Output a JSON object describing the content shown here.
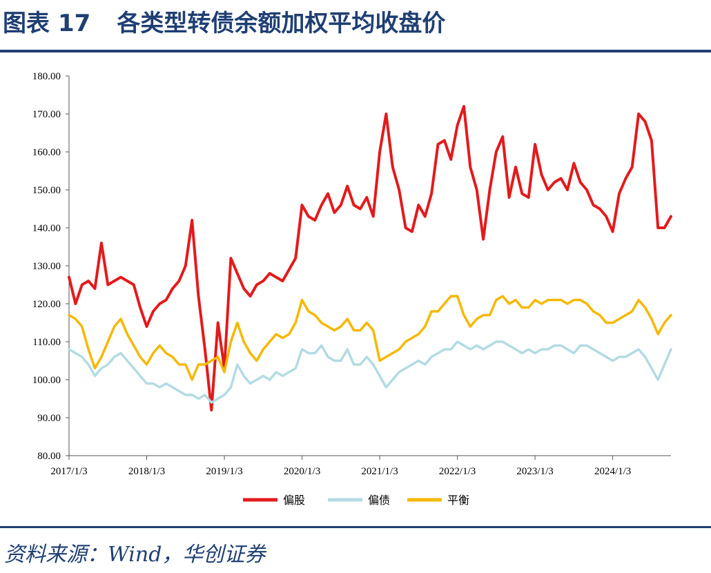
{
  "header": {
    "label": "图表",
    "number": "17",
    "title": "各类型转债余额加权平均收盘价"
  },
  "source": "资料来源：Wind，华创证券",
  "chart_data": {
    "type": "line",
    "title": "各类型转债余额加权平均收盘价",
    "xlabel": "",
    "ylabel": "",
    "ylim": [
      80,
      180
    ],
    "yticks": [
      "80.00",
      "90.00",
      "100.00",
      "110.00",
      "120.00",
      "130.00",
      "140.00",
      "150.00",
      "160.00",
      "170.00",
      "180.00"
    ],
    "xticks": [
      "2017/1/3",
      "2018/1/3",
      "2019/1/3",
      "2020/1/3",
      "2021/1/3",
      "2022/1/3",
      "2023/1/3",
      "2024/1/3"
    ],
    "x": [
      "2017-01",
      "2017-02",
      "2017-03",
      "2017-04",
      "2017-05",
      "2017-06",
      "2017-07",
      "2017-08",
      "2017-09",
      "2017-10",
      "2017-11",
      "2017-12",
      "2018-01",
      "2018-02",
      "2018-03",
      "2018-04",
      "2018-05",
      "2018-06",
      "2018-07",
      "2018-08",
      "2018-09",
      "2018-10",
      "2018-11",
      "2018-12",
      "2019-01",
      "2019-02",
      "2019-03",
      "2019-04",
      "2019-05",
      "2019-06",
      "2019-07",
      "2019-08",
      "2019-09",
      "2019-10",
      "2019-11",
      "2019-12",
      "2020-01",
      "2020-02",
      "2020-03",
      "2020-04",
      "2020-05",
      "2020-06",
      "2020-07",
      "2020-08",
      "2020-09",
      "2020-10",
      "2020-11",
      "2020-12",
      "2021-01",
      "2021-02",
      "2021-03",
      "2021-04",
      "2021-05",
      "2021-06",
      "2021-07",
      "2021-08",
      "2021-09",
      "2021-10",
      "2021-11",
      "2021-12",
      "2022-01",
      "2022-02",
      "2022-03",
      "2022-04",
      "2022-05",
      "2022-06",
      "2022-07",
      "2022-08",
      "2022-09",
      "2022-10",
      "2022-11",
      "2022-12",
      "2023-01",
      "2023-02",
      "2023-03",
      "2023-04",
      "2023-05",
      "2023-06",
      "2023-07",
      "2023-08",
      "2023-09",
      "2023-10",
      "2023-11",
      "2023-12",
      "2024-01",
      "2024-02",
      "2024-03",
      "2024-04",
      "2024-05",
      "2024-06",
      "2024-07",
      "2024-08",
      "2024-09",
      "2024-10"
    ],
    "series": [
      {
        "name": "偏股",
        "color": "#e31a1c",
        "values": [
          127,
          120,
          125,
          126,
          124,
          136,
          125,
          126,
          127,
          126,
          125,
          119,
          114,
          118,
          120,
          121,
          124,
          126,
          130,
          142,
          122,
          108,
          92,
          115,
          103,
          132,
          128,
          124,
          122,
          125,
          126,
          128,
          127,
          126,
          129,
          132,
          146,
          143,
          142,
          146,
          149,
          144,
          146,
          151,
          146,
          145,
          148,
          143,
          160,
          170,
          156,
          150,
          140,
          139,
          146,
          143,
          149,
          162,
          163,
          158,
          167,
          172,
          156,
          150,
          137,
          150,
          160,
          164,
          148,
          156,
          149,
          148,
          162,
          154,
          150,
          152,
          153,
          150,
          157,
          152,
          150,
          146,
          145,
          143,
          139,
          149,
          153,
          156,
          170,
          168,
          163,
          140,
          140,
          143
        ]
      },
      {
        "name": "偏债",
        "color": "#b3dbe3",
        "values": [
          108,
          107,
          106,
          104,
          101,
          103,
          104,
          106,
          107,
          105,
          103,
          101,
          99,
          99,
          98,
          99,
          98,
          97,
          96,
          96,
          95,
          96,
          94,
          95,
          96,
          98,
          104,
          101,
          99,
          100,
          101,
          100,
          102,
          101,
          102,
          103,
          108,
          107,
          107,
          109,
          106,
          105,
          105,
          108,
          104,
          104,
          106,
          104,
          101,
          98,
          100,
          102,
          103,
          104,
          105,
          104,
          106,
          107,
          108,
          108,
          110,
          109,
          108,
          109,
          108,
          109,
          110,
          110,
          109,
          108,
          107,
          108,
          107,
          108,
          108,
          109,
          109,
          108,
          107,
          109,
          109,
          108,
          107,
          106,
          105,
          106,
          106,
          107,
          108,
          106,
          103,
          100,
          104,
          108
        ]
      },
      {
        "name": "平衡",
        "color": "#f5b800",
        "values": [
          117,
          116,
          114,
          108,
          103,
          106,
          110,
          114,
          116,
          112,
          109,
          106,
          104,
          107,
          109,
          107,
          106,
          104,
          104,
          100,
          104,
          104,
          105,
          106,
          102,
          110,
          115,
          110,
          107,
          105,
          108,
          110,
          112,
          111,
          112,
          115,
          121,
          118,
          117,
          115,
          114,
          113,
          114,
          116,
          113,
          113,
          115,
          113,
          105,
          106,
          107,
          108,
          110,
          111,
          112,
          114,
          118,
          118,
          120,
          122,
          122,
          117,
          114,
          116,
          117,
          117,
          121,
          122,
          120,
          121,
          119,
          119,
          121,
          120,
          121,
          121,
          121,
          120,
          121,
          121,
          120,
          118,
          117,
          115,
          115,
          116,
          117,
          118,
          121,
          119,
          116,
          112,
          115,
          117
        ]
      }
    ],
    "legend": "bottom",
    "grid": false
  }
}
